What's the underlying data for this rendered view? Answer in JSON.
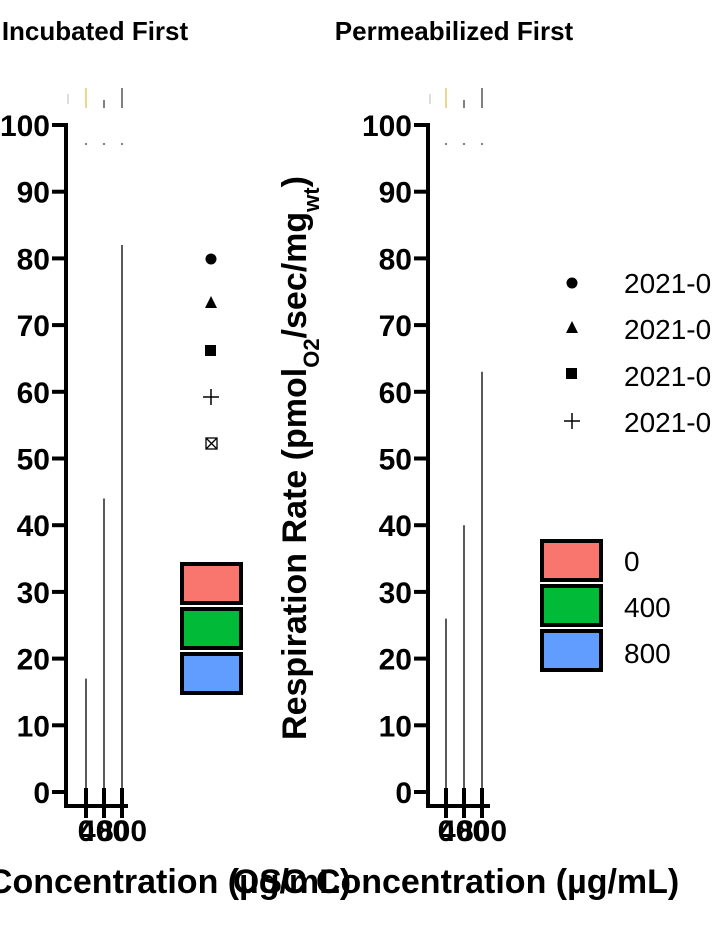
{
  "chart_data": [
    {
      "type": "bar",
      "title": "Incubated First",
      "xlabel": "OSC Concentration (µg/mL)",
      "ylabel": "",
      "ylim": [
        0,
        100
      ],
      "yticks": [
        0,
        10,
        20,
        30,
        40,
        50,
        60,
        70,
        80,
        90,
        100
      ],
      "categories": [
        "0",
        "400",
        "800"
      ],
      "values": [
        17,
        44,
        82
      ],
      "legend_points": {
        "shapes": [
          "circle",
          "triangle",
          "square",
          "cross",
          "boxed-x"
        ],
        "labels": [
          "",
          "",
          "",
          "",
          ""
        ]
      },
      "legend_fill": {
        "labels": [
          "",
          "",
          ""
        ],
        "colors": [
          "#f8766d",
          "#00ba38",
          "#619cff"
        ]
      }
    },
    {
      "type": "bar",
      "title": "Permeabilized First",
      "xlabel": "OSC Concentration (µg/mL)",
      "ylabel": "Respiration Rate (pmolO2/sec/mgwt)",
      "ylim": [
        0,
        100
      ],
      "yticks": [
        0,
        10,
        20,
        30,
        40,
        50,
        60,
        70,
        80,
        90,
        100
      ],
      "categories": [
        "0",
        "400",
        "800"
      ],
      "values": [
        26,
        40,
        63
      ],
      "legend_points": {
        "shapes": [
          "circle",
          "triangle",
          "square",
          "cross"
        ],
        "labels": [
          "2021-0",
          "2021-0",
          "2021-0",
          "2021-0"
        ]
      },
      "legend_fill": {
        "labels": [
          "0",
          "400",
          "800"
        ],
        "colors": [
          "#f8766d",
          "#00ba38",
          "#619cff"
        ]
      }
    }
  ],
  "ylabel_parts": {
    "pre": "Respiration Rate (pmol",
    "sub1": "O2",
    "mid": "/sec/mg",
    "sub2": "wt",
    "post": ")"
  }
}
